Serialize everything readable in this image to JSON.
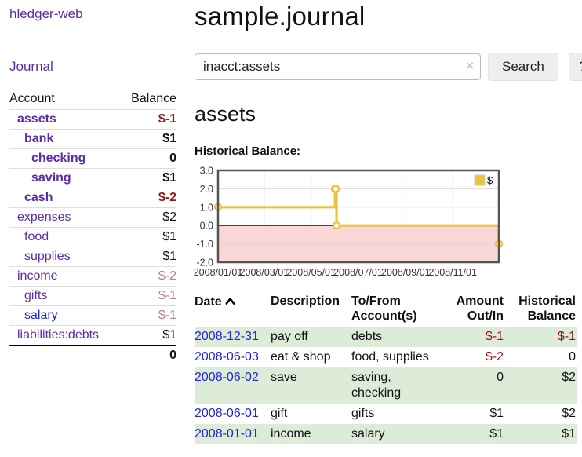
{
  "app_title": "hledger-web",
  "sidebar": {
    "journal_link": "Journal",
    "headers": {
      "account": "Account",
      "balance": "Balance"
    },
    "accounts": [
      {
        "name": "assets",
        "balance": "$-1"
      },
      {
        "name": "bank",
        "balance": "$1"
      },
      {
        "name": "checking",
        "balance": "0"
      },
      {
        "name": "saving",
        "balance": "$1"
      },
      {
        "name": "cash",
        "balance": "$-2"
      },
      {
        "name": "expenses",
        "balance": "$2"
      },
      {
        "name": "food",
        "balance": "$1"
      },
      {
        "name": "supplies",
        "balance": "$1"
      },
      {
        "name": "income",
        "balance": "$-2"
      },
      {
        "name": "gifts",
        "balance": "$-1"
      },
      {
        "name": "salary",
        "balance": "$-1"
      },
      {
        "name": "liabilities:debts",
        "balance": "$1"
      }
    ],
    "total": "0"
  },
  "main": {
    "title": "sample.journal",
    "search": {
      "value": "inacct:assets",
      "clear_icon": "×",
      "button_label": "Search",
      "help_label": "?"
    },
    "account_heading": "assets",
    "section_label": "Historical Balance:"
  },
  "chart_data": {
    "type": "line",
    "step": true,
    "title": "Historical Balance:",
    "series": [
      {
        "name": "$",
        "color": "#edc240",
        "points": [
          [
            "2008-01-01",
            1
          ],
          [
            "2008-06-01",
            2
          ],
          [
            "2008-06-02",
            2
          ],
          [
            "2008-06-03",
            0
          ],
          [
            "2008-12-31",
            -1
          ]
        ]
      }
    ],
    "xlim": [
      "2008-01-01",
      "2008-12-31"
    ],
    "ylim": [
      -2,
      3
    ],
    "x_ticks": [
      "2008/01/01",
      "2008/03/01",
      "2008/05/01",
      "2008/07/01",
      "2008/09/01",
      "2008/11/01"
    ],
    "y_ticks": [
      3.0,
      2.0,
      1.0,
      0.0,
      -1.0,
      -2.0
    ],
    "grid": true,
    "negative_region_color": "#f9d7d7",
    "zero_line_color": "#990000",
    "grid_color": "#d8d8d8",
    "border_color": "#545454",
    "legend": {
      "label": "$",
      "position": "top-right"
    }
  },
  "register": {
    "headers": {
      "date": "Date",
      "description": "Description",
      "accounts": "To/From Account(s)",
      "amount": "Amount Out/In",
      "balance": "Historical Balance"
    },
    "sort": {
      "column": "date",
      "direction": "ascending"
    },
    "rows": [
      {
        "date": "2008-12-31",
        "description": "pay off",
        "accounts": "debts",
        "amount": "$-1",
        "balance": "$-1"
      },
      {
        "date": "2008-06-03",
        "description": "eat & shop",
        "accounts": "food, supplies",
        "amount": "$-2",
        "balance": "0"
      },
      {
        "date": "2008-06-02",
        "description": "save",
        "accounts": "saving, checking",
        "amount": "0",
        "balance": "$2"
      },
      {
        "date": "2008-06-01",
        "description": "gift",
        "accounts": "gifts",
        "amount": "$1",
        "balance": "$2"
      },
      {
        "date": "2008-01-01",
        "description": "income",
        "accounts": "salary",
        "amount": "$1",
        "balance": "$1"
      }
    ]
  }
}
